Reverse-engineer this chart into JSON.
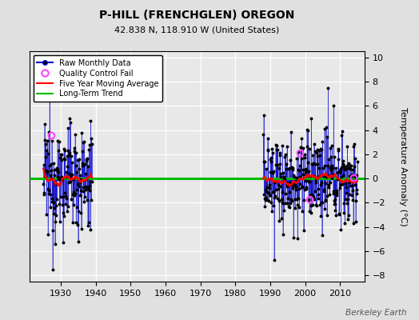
{
  "title": "P-HILL (FRENCHGLEN) OREGON",
  "subtitle": "42.838 N, 118.910 W (United States)",
  "ylabel": "Temperature Anomaly (°C)",
  "watermark": "Berkeley Earth",
  "xlim": [
    1921,
    2017
  ],
  "ylim": [
    -8.5,
    10.5
  ],
  "yticks": [
    -8,
    -6,
    -4,
    -2,
    0,
    2,
    4,
    6,
    8,
    10
  ],
  "xticks": [
    1930,
    1940,
    1950,
    1960,
    1970,
    1980,
    1990,
    2000,
    2010
  ],
  "fig_bg_color": "#e0e0e0",
  "plot_bg_color": "#e8e8e8",
  "grid_color": "#ffffff",
  "data_color": "#0000cc",
  "moving_avg_color": "#ff0000",
  "trend_color": "#00bb00",
  "dot_color": "#000000",
  "qc_color": "#ff44ff",
  "long_term_trend_y": 0.0,
  "period1_start_yr": 1925,
  "period1_end_yr": 1939,
  "period2_start_yr": 1988,
  "period2_end_yr": 2015
}
